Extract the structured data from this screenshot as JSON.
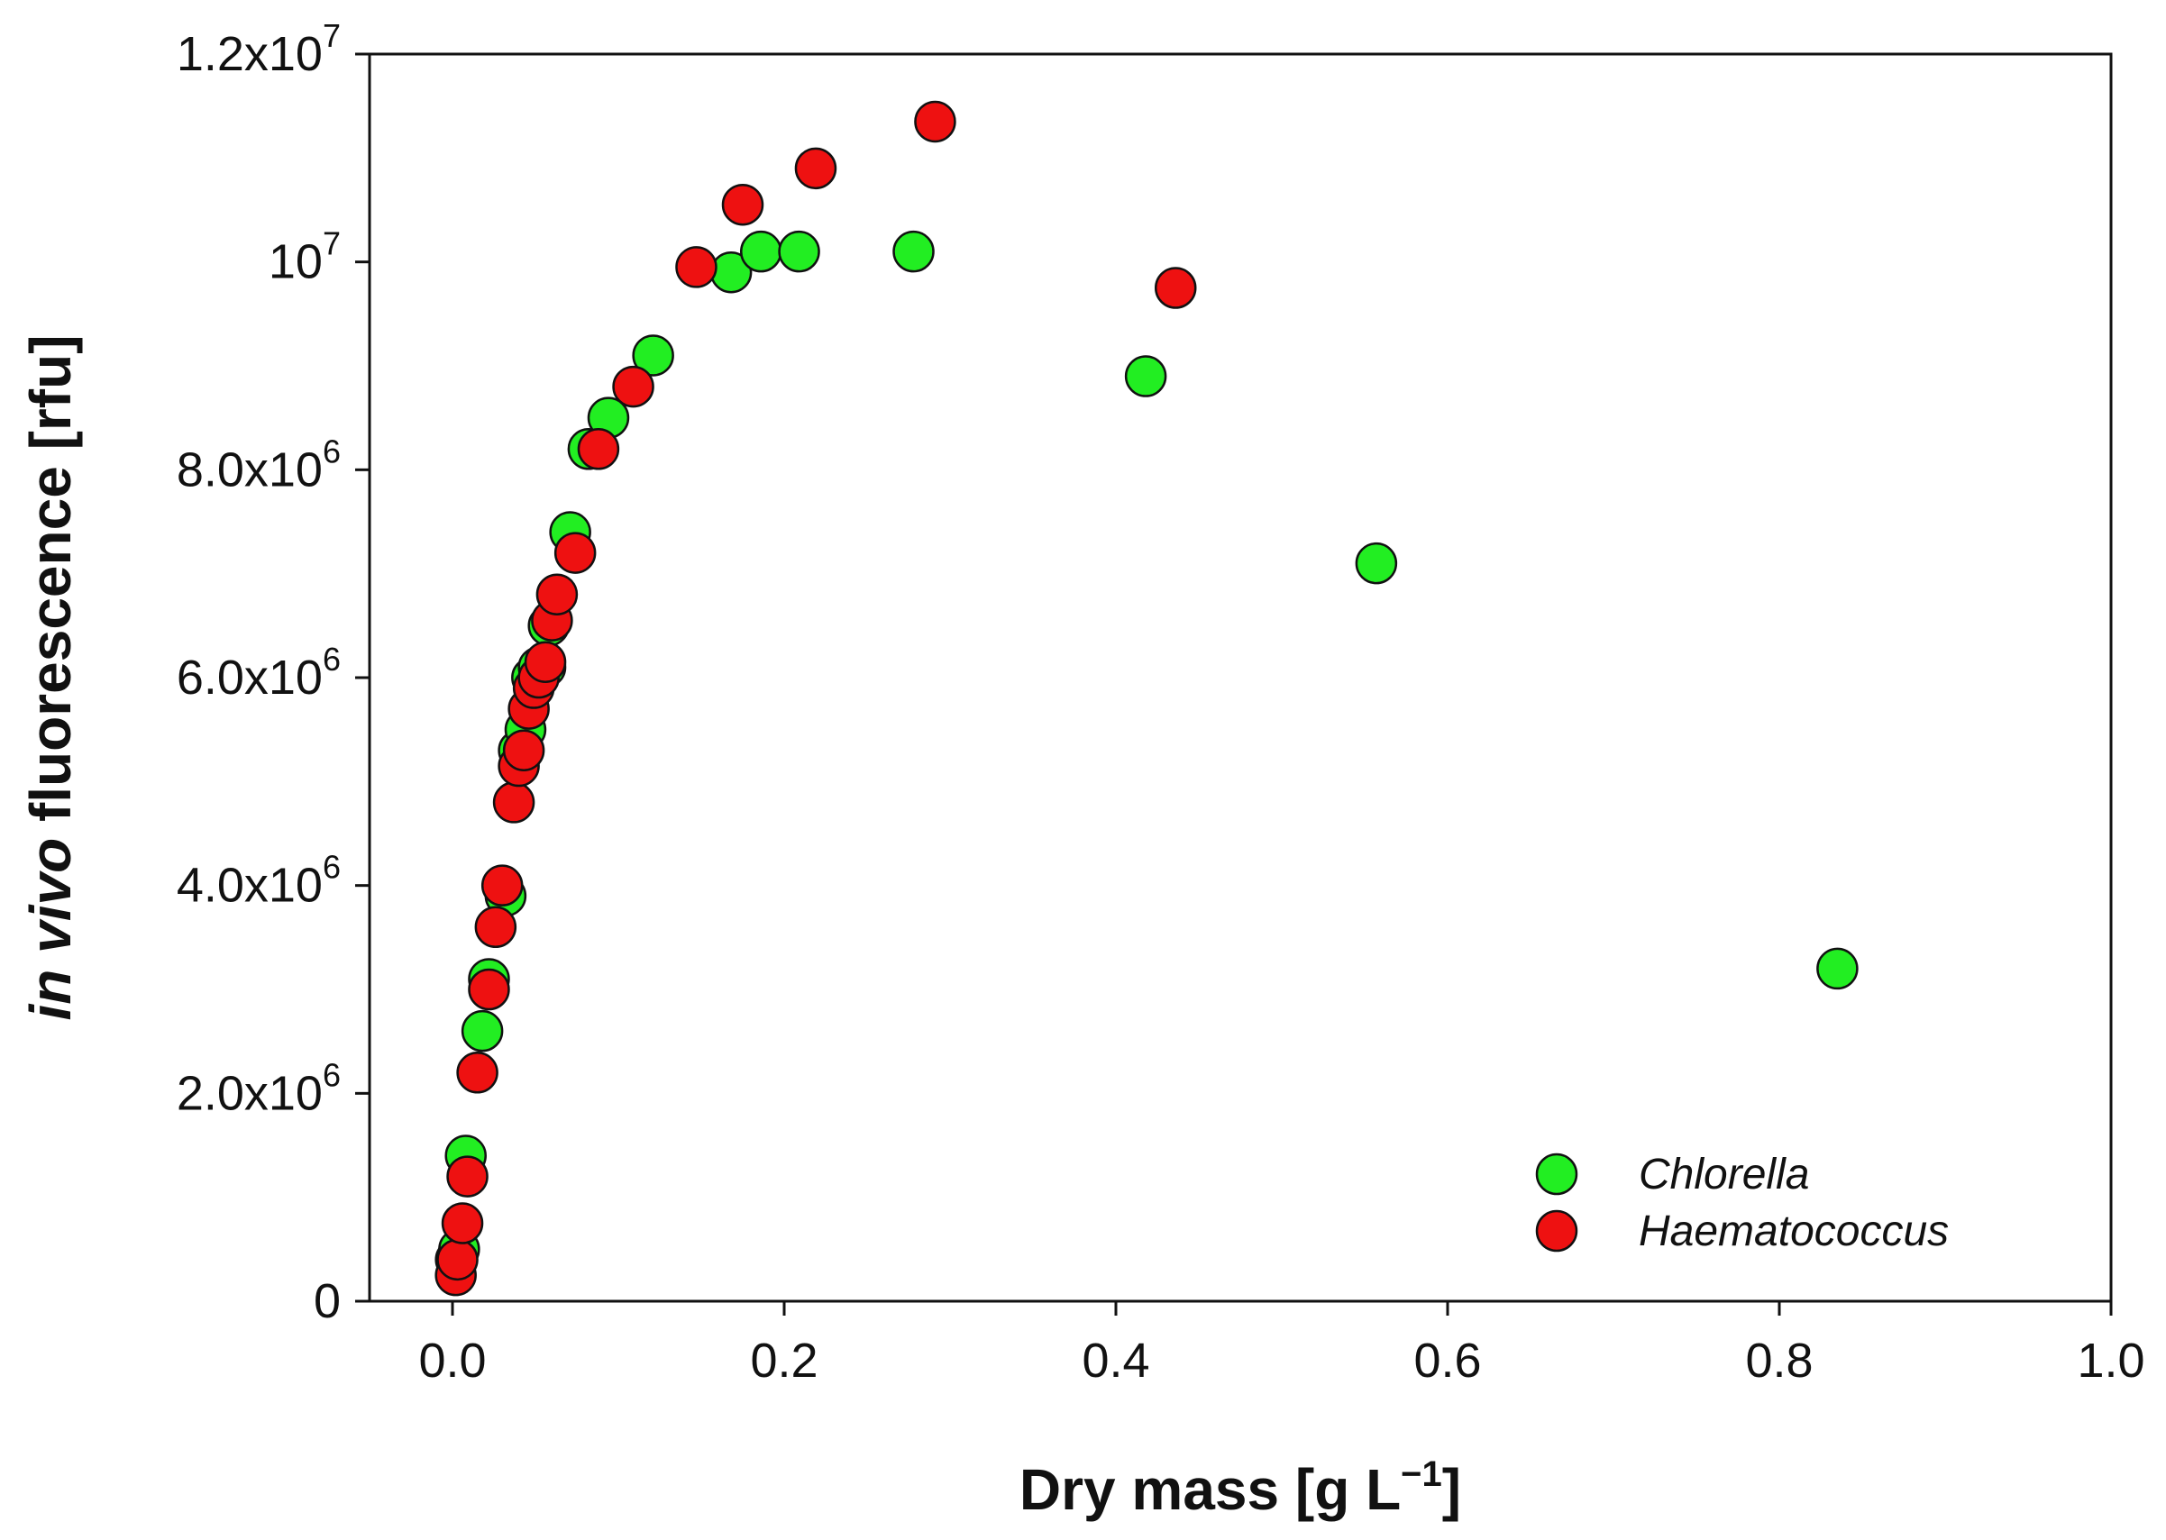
{
  "chart_data": {
    "type": "scatter",
    "title": "",
    "xlabel": {
      "main": "Dry mass [g L",
      "sup": "−1",
      "end": "]"
    },
    "ylabel": {
      "italic": "in vivo",
      "rest": " fluorescence [rfu]"
    },
    "xlim": [
      -0.05,
      1.0
    ],
    "ylim": [
      0,
      12000000
    ],
    "x_ticks": [
      {
        "value": 0.0,
        "label": "0.0"
      },
      {
        "value": 0.2,
        "label": "0.2"
      },
      {
        "value": 0.4,
        "label": "0.4"
      },
      {
        "value": 0.6,
        "label": "0.6"
      },
      {
        "value": 0.8,
        "label": "0.8"
      },
      {
        "value": 1.0,
        "label": "1.0"
      }
    ],
    "y_ticks": [
      {
        "value": 0,
        "base": "0",
        "exp": ""
      },
      {
        "value": 2000000,
        "base": "2.0x10",
        "exp": "6"
      },
      {
        "value": 4000000,
        "base": "4.0x10",
        "exp": "6"
      },
      {
        "value": 6000000,
        "base": "6.0x10",
        "exp": "6"
      },
      {
        "value": 8000000,
        "base": "8.0x10",
        "exp": "6"
      },
      {
        "value": 10000000,
        "base": "10",
        "exp": "7"
      },
      {
        "value": 12000000,
        "base": "1.2x10",
        "exp": "7"
      }
    ],
    "legend_position": "bottom-right",
    "grid": false,
    "series": [
      {
        "name": "Chlorella",
        "color": "#22ee22",
        "points": [
          [
            0.002,
            400000
          ],
          [
            0.004,
            500000
          ],
          [
            0.008,
            1400000
          ],
          [
            0.018,
            2600000
          ],
          [
            0.022,
            3100000
          ],
          [
            0.032,
            3900000
          ],
          [
            0.04,
            5300000
          ],
          [
            0.044,
            5500000
          ],
          [
            0.048,
            6000000
          ],
          [
            0.052,
            6100000
          ],
          [
            0.056,
            6100000
          ],
          [
            0.058,
            6500000
          ],
          [
            0.071,
            7400000
          ],
          [
            0.082,
            8200000
          ],
          [
            0.094,
            8500000
          ],
          [
            0.121,
            9100000
          ],
          [
            0.168,
            9900000
          ],
          [
            0.186,
            10100000
          ],
          [
            0.209,
            10100000
          ],
          [
            0.278,
            10100000
          ],
          [
            0.418,
            8900000
          ],
          [
            0.557,
            7100000
          ],
          [
            0.835,
            3200000
          ]
        ]
      },
      {
        "name": "Haematococcus",
        "color": "#ee1111",
        "points": [
          [
            0.002,
            250000
          ],
          [
            0.003,
            400000
          ],
          [
            0.006,
            750000
          ],
          [
            0.009,
            1200000
          ],
          [
            0.015,
            2200000
          ],
          [
            0.022,
            3000000
          ],
          [
            0.026,
            3600000
          ],
          [
            0.03,
            4000000
          ],
          [
            0.037,
            4800000
          ],
          [
            0.04,
            5150000
          ],
          [
            0.043,
            5300000
          ],
          [
            0.046,
            5700000
          ],
          [
            0.049,
            5900000
          ],
          [
            0.052,
            6000000
          ],
          [
            0.056,
            6150000
          ],
          [
            0.06,
            6550000
          ],
          [
            0.063,
            6800000
          ],
          [
            0.074,
            7200000
          ],
          [
            0.088,
            8200000
          ],
          [
            0.109,
            8800000
          ],
          [
            0.147,
            9950000
          ],
          [
            0.175,
            10550000
          ],
          [
            0.219,
            10900000
          ],
          [
            0.291,
            11350000
          ],
          [
            0.436,
            9750000
          ]
        ]
      }
    ]
  }
}
